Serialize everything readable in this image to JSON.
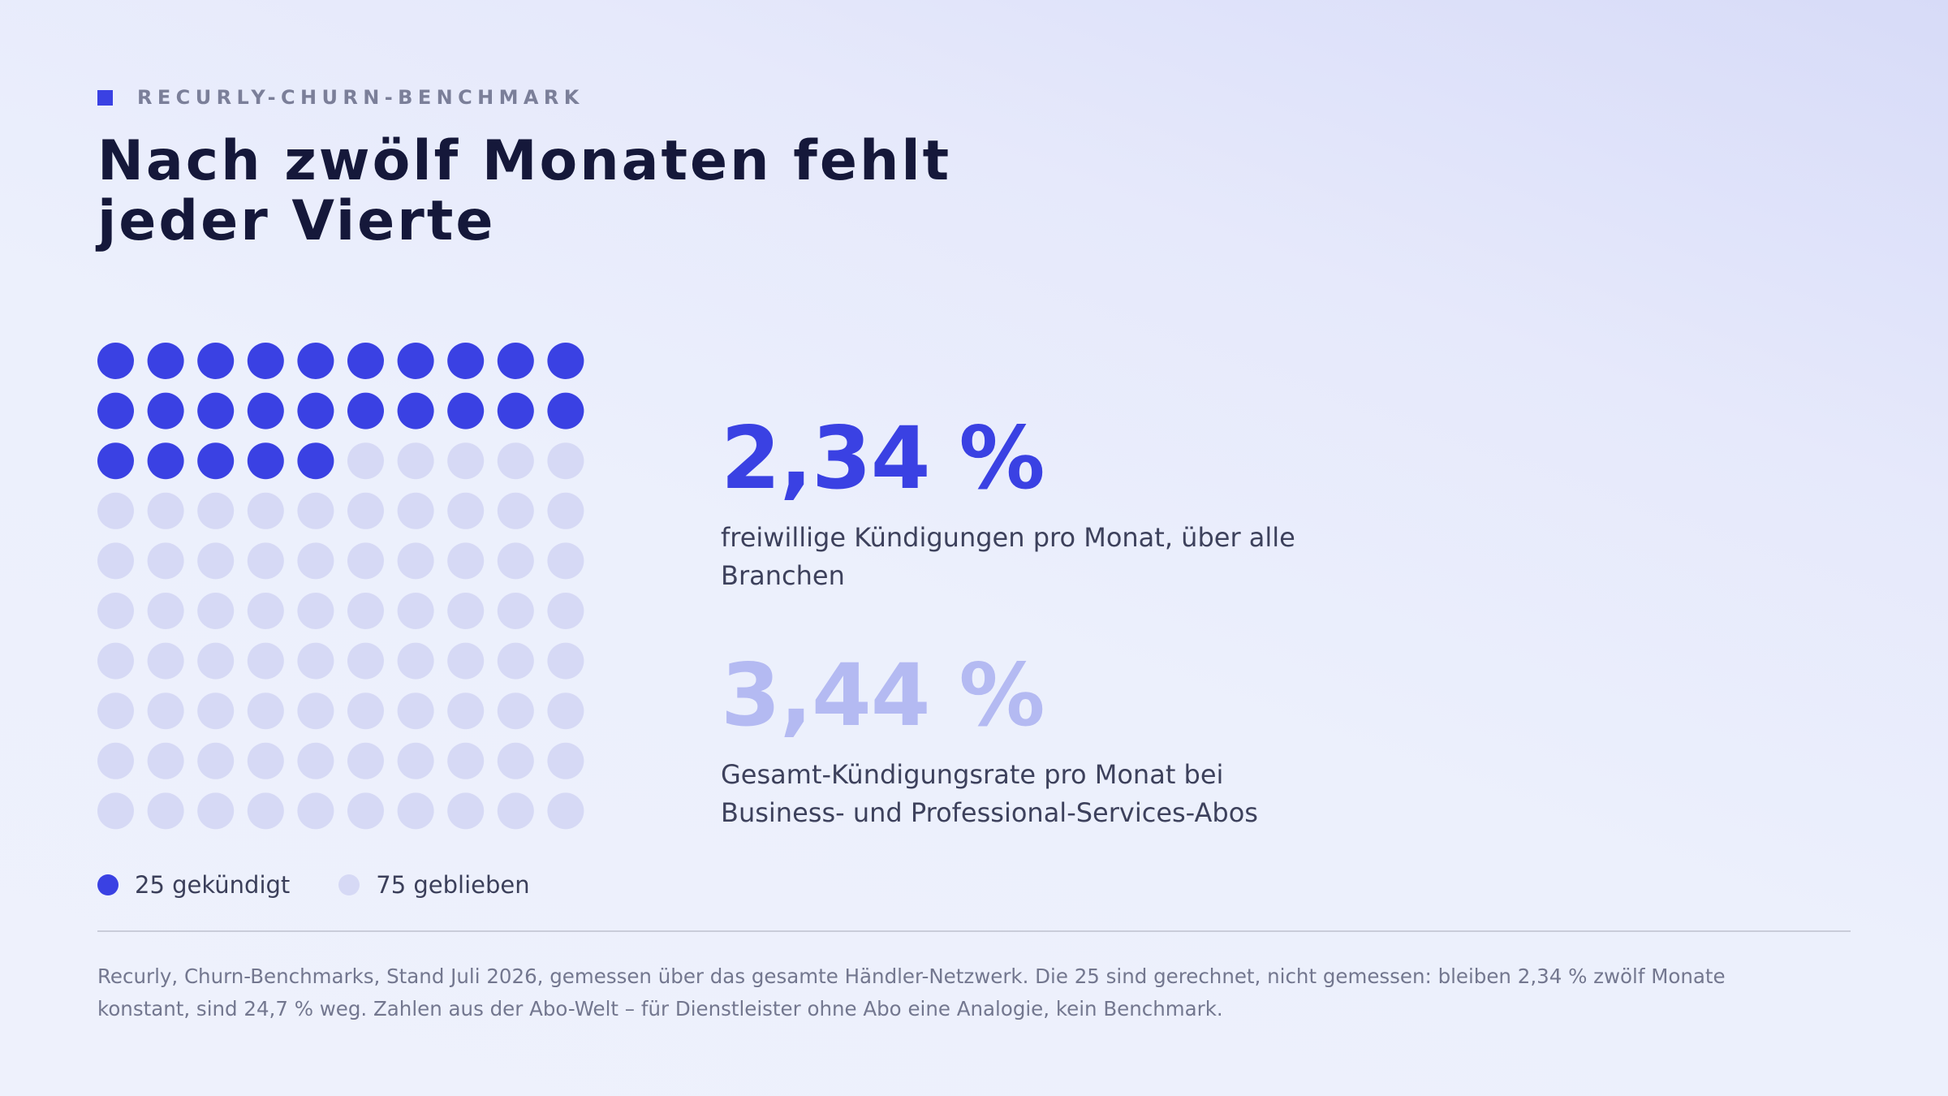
{
  "eyebrow": "RECURLY-CHURN-BENCHMARK",
  "title_line1": "Nach zwölf Monaten fehlt",
  "title_line2": "jeder Vierte",
  "colors": {
    "accent": "#3a41e3",
    "muted": "#d6d9f5",
    "stat_secondary": "#b4baf2",
    "title": "#15183a"
  },
  "chart_data": {
    "type": "waffle",
    "rows": 10,
    "cols": 10,
    "series": [
      {
        "name": "25 gekündigt",
        "value": 25,
        "color": "#3a41e3"
      },
      {
        "name": "75 geblieben",
        "value": 75,
        "color": "#d6d9f5"
      }
    ],
    "legend_placement": "bottom-left"
  },
  "stats": [
    {
      "value": "2,34 %",
      "desc_line1": "freiwillige Kündigungen pro Monat, über alle",
      "desc_line2": "Branchen",
      "color": "#3a41e3"
    },
    {
      "value": "3,44 %",
      "desc_line1": "Gesamt-Kündigungsrate pro Monat bei",
      "desc_line2": "Business- und Professional-Services-Abos",
      "color": "#b4baf2"
    }
  ],
  "source_line1": "Recurly, Churn-Benchmarks, Stand Juli 2026, gemessen über das gesamte Händler-Netzwerk. Die 25 sind gerechnet, nicht gemessen: bleiben 2,34 % zwölf Monate",
  "source_line2": "konstant, sind 24,7 % weg. Zahlen aus der Abo-Welt – für Dienstleister ohne Abo eine Analogie, kein Benchmark."
}
